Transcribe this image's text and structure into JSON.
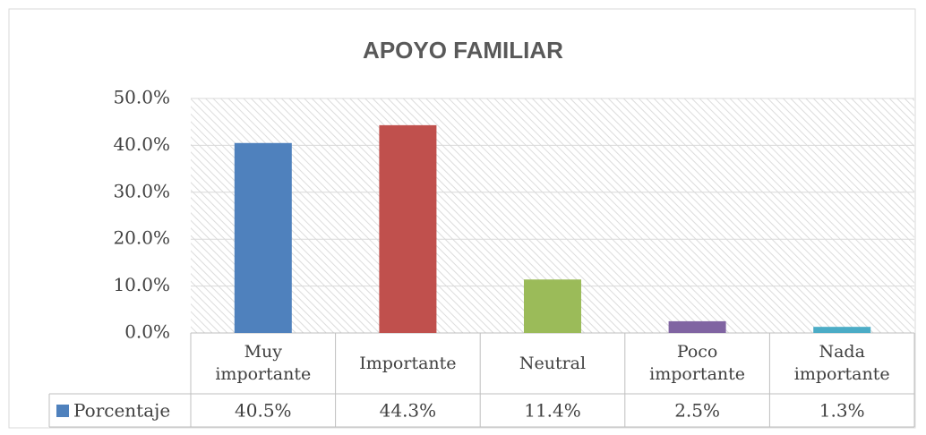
{
  "chart_data": {
    "type": "bar",
    "title": "APOYO FAMILIAR",
    "categories": [
      "Muy importante",
      "Importante",
      "Neutral",
      "Poco importante",
      "Nada importante"
    ],
    "series": [
      {
        "name": "Porcentaje",
        "color": "#4f81bd",
        "colors": [
          "#4f81bd",
          "#c0504d",
          "#9bbb59",
          "#8064a2",
          "#4bacc6"
        ],
        "values": [
          40.5,
          44.3,
          11.4,
          2.5,
          1.3
        ],
        "value_labels": [
          "40.5%",
          "44.3%",
          "11.4%",
          "2.5%",
          "1.3%"
        ]
      }
    ],
    "ylim": [
      0,
      50
    ],
    "yticks": [
      {
        "value": 0,
        "label": "0.0%"
      },
      {
        "value": 10,
        "label": "10.0%"
      },
      {
        "value": 20,
        "label": "20.0%"
      },
      {
        "value": 30,
        "label": "30.0%"
      },
      {
        "value": 40,
        "label": "40.0%"
      },
      {
        "value": 50,
        "label": "50.0%"
      }
    ],
    "grid": true,
    "data_table": true
  }
}
